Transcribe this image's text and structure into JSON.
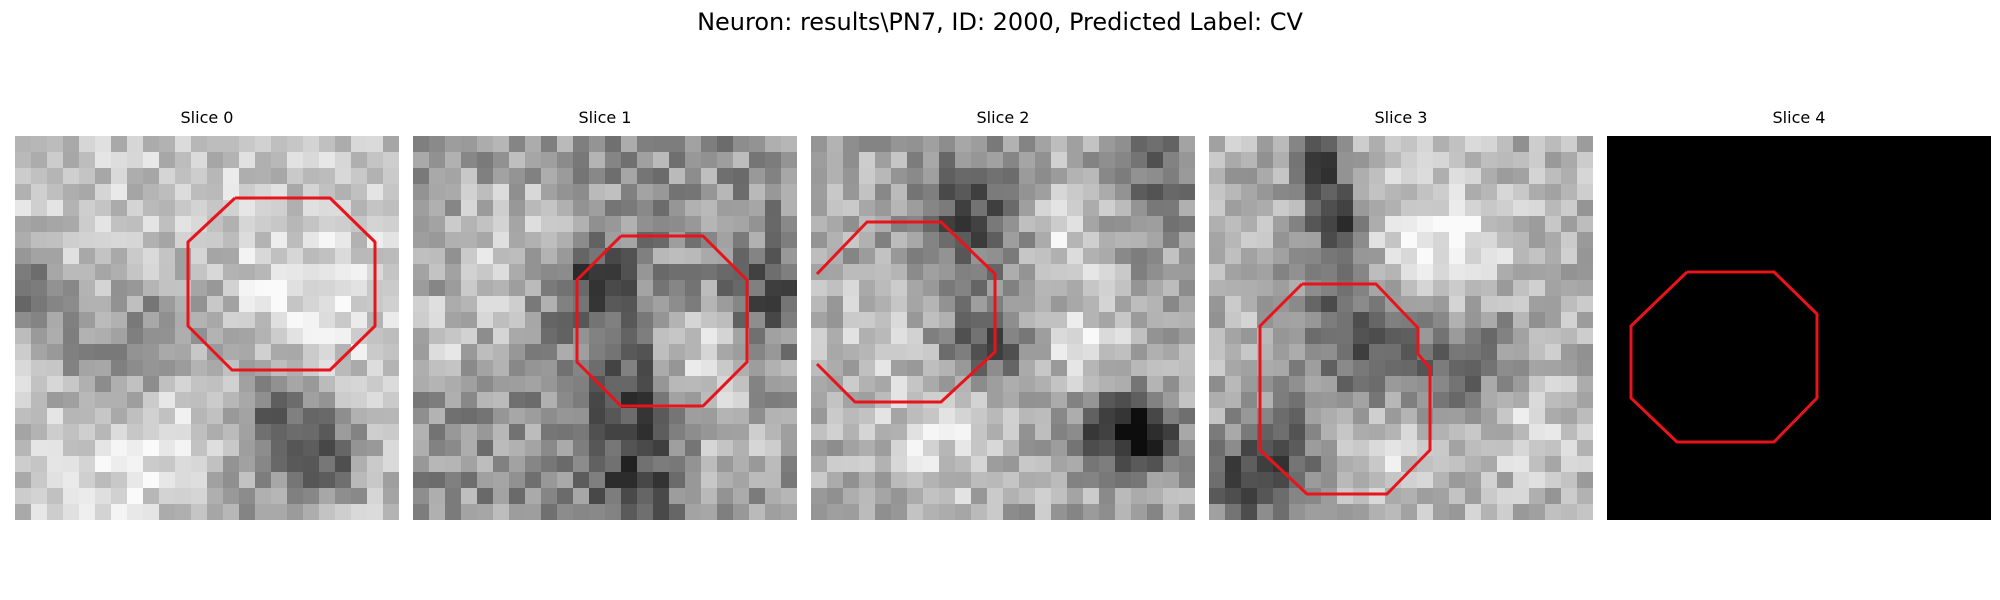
{
  "figure": {
    "title": "Neuron: results\\PN7, ID: 2000, Predicted Label: CV"
  },
  "panels": [
    {
      "title": "Slice 0"
    },
    {
      "title": "Slice 1"
    },
    {
      "title": "Slice 2"
    },
    {
      "title": "Slice 3"
    },
    {
      "title": "Slice 4"
    }
  ],
  "overlay_color": "#e8141c"
}
